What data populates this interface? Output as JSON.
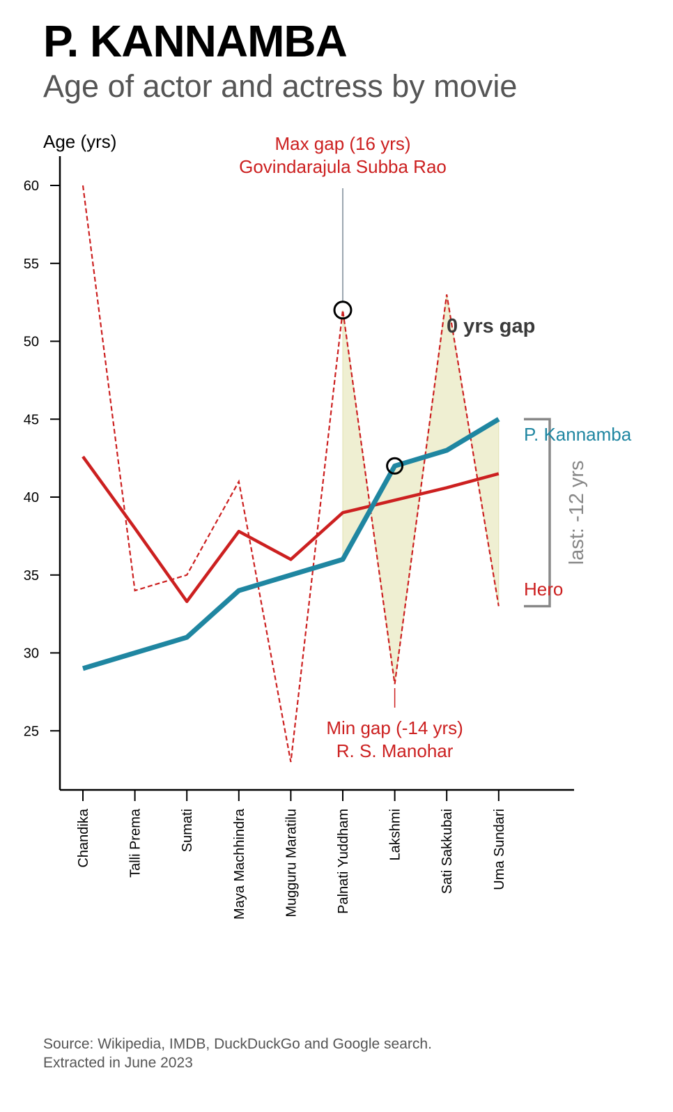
{
  "header": {
    "title": "P. KANNAMBA",
    "subtitle": "Age of actor and actress by movie"
  },
  "footer": {
    "source_line1": "Source: Wikipedia, IMDB, DuckDuckGo and Google search.",
    "source_line2": "Extracted in June 2023"
  },
  "chart_data": {
    "type": "line",
    "ylabel": "Age (yrs)",
    "ylim": [
      21,
      62
    ],
    "yticks": [
      25,
      30,
      35,
      40,
      45,
      50,
      55,
      60
    ],
    "categories": [
      "Chandika",
      "Talli Prema",
      "Sumati",
      "Maya Machhindra",
      "Mugguru Maratilu",
      "Palnati Yuddham",
      "Lakshmi",
      "Sati Sakkubai",
      "Uma Sundari"
    ],
    "series": [
      {
        "name": "P. Kannamba",
        "color": "#1f86a1",
        "values": [
          29,
          30,
          31,
          34,
          35,
          36,
          42,
          43,
          45
        ]
      },
      {
        "name": "Hero",
        "color": "#cc2020",
        "style": "dashed",
        "values": [
          60,
          34,
          35,
          41,
          23,
          52,
          28,
          53,
          33
        ]
      },
      {
        "name": "Hero",
        "color": "#cc2020",
        "style": "trend",
        "values": [
          42.6,
          38,
          33.3,
          37.8,
          36,
          39,
          39.8,
          40.6,
          41.5
        ]
      }
    ],
    "shaded_gap_from": "Palnati Yuddham",
    "annotations": {
      "max_gap": {
        "line1": "Max gap (16 yrs)",
        "line2": "Govindarajula Subba Rao",
        "category": "Palnati Yuddham",
        "value": 52
      },
      "min_gap": {
        "line1": "Min gap (-14 yrs)",
        "line2": "R. S. Manohar",
        "category": "Lakshmi",
        "value": 28
      },
      "zero_gap": {
        "text": "0 yrs gap",
        "category": "Lakshmi",
        "value": 42
      },
      "last_gap": {
        "text": "last: -12 yrs",
        "from": 45,
        "to": 33
      },
      "actress_label": "P. Kannamba",
      "hero_label": "Hero"
    }
  }
}
